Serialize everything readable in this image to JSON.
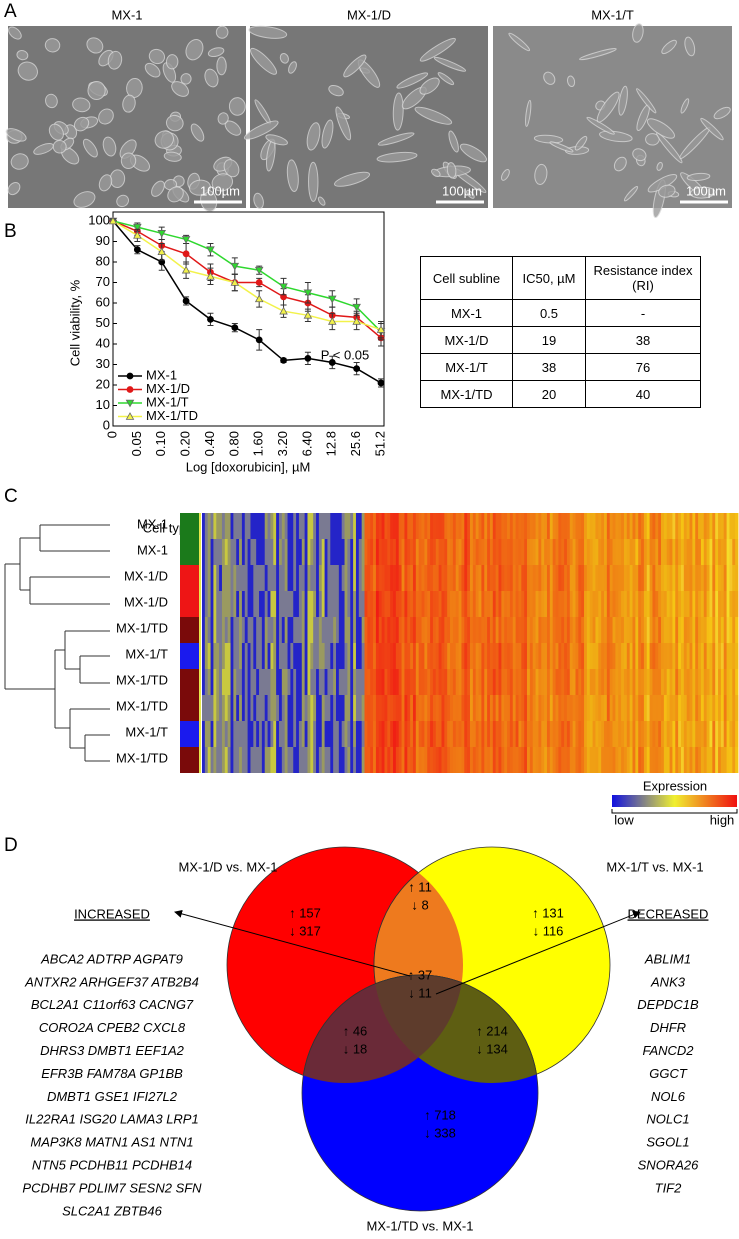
{
  "panels": {
    "a": "A",
    "b": "B",
    "c": "C",
    "d": "D"
  },
  "micrographs": [
    {
      "title": "MX-1",
      "scale_bar": "100µm"
    },
    {
      "title": "MX-1/D",
      "scale_bar": "100µm"
    },
    {
      "title": "MX-1/T",
      "scale_bar": "100µm"
    }
  ],
  "chart_data": {
    "type": "line",
    "y_label": "Cell viability, %",
    "x_label": "Log [doxorubicin], µM",
    "annotation": "P < 0.05",
    "categories": [
      "0",
      "0.05",
      "0.10",
      "0.20",
      "0.40",
      "0.80",
      "1.60",
      "3.20",
      "6.40",
      "12.8",
      "25.6",
      "51.2"
    ],
    "ylim": [
      0,
      100
    ],
    "yticks": [
      0,
      10,
      20,
      30,
      40,
      50,
      60,
      70,
      80,
      90,
      100
    ],
    "grid": false,
    "legend": "lower-left",
    "series": [
      {
        "name": "MX-1",
        "color": "#000000",
        "marker": "circle",
        "values": [
          100,
          86,
          80,
          61,
          52,
          48,
          42,
          32,
          33,
          31,
          28,
          21
        ],
        "errors": [
          1,
          2,
          4,
          2,
          3,
          2,
          5,
          1,
          3,
          3,
          3,
          2
        ]
      },
      {
        "name": "MX-1/D",
        "color": "#e01818",
        "marker": "circle",
        "values": [
          100,
          95,
          88,
          84,
          75,
          70,
          70,
          63,
          60,
          54,
          53,
          43
        ],
        "errors": [
          1,
          2,
          3,
          5,
          4,
          4,
          2,
          4,
          4,
          4,
          3,
          4
        ]
      },
      {
        "name": "MX-1/T",
        "color": "#2ed82e",
        "marker": "triangle-down",
        "values": [
          100,
          97,
          94,
          91,
          86,
          78,
          76,
          68,
          65,
          62,
          58,
          46
        ],
        "errors": [
          1,
          2,
          3,
          2,
          3,
          4,
          2,
          4,
          5,
          4,
          4,
          4
        ]
      },
      {
        "name": "MX-1/TD",
        "color": "#f2f24a",
        "marker": "triangle-up",
        "values": [
          100,
          93,
          85,
          76,
          73,
          70,
          62,
          56,
          54,
          51,
          51,
          47
        ],
        "errors": [
          1,
          3,
          4,
          4,
          4,
          4,
          4,
          3,
          3,
          4,
          4,
          4
        ]
      }
    ]
  },
  "table": {
    "header": [
      "Cell subline",
      "IC50, µM",
      "Resistance index (RI)"
    ],
    "rows": [
      [
        "MX-1",
        "0.5",
        "-"
      ],
      [
        "MX-1/D",
        "19",
        "38"
      ],
      [
        "MX-1/T",
        "38",
        "76"
      ],
      [
        "MX-1/TD",
        "20",
        "40"
      ]
    ]
  },
  "heatmap": {
    "cell_type_label": "Cell type",
    "rows": [
      {
        "label": "MX-1",
        "color": "#1b7a1b"
      },
      {
        "label": "MX-1",
        "color": "#1b7a1b"
      },
      {
        "label": "MX-1/D",
        "color": "#ee1515"
      },
      {
        "label": "MX-1/D",
        "color": "#ee1515"
      },
      {
        "label": "MX-1/TD",
        "color": "#7a0a0a"
      },
      {
        "label": "MX-1/T",
        "color": "#1a1aee"
      },
      {
        "label": "MX-1/TD",
        "color": "#7a0a0a"
      },
      {
        "label": "MX-1/TD",
        "color": "#7a0a0a"
      },
      {
        "label": "MX-1/T",
        "color": "#1a1aee"
      },
      {
        "label": "MX-1/TD",
        "color": "#7a0a0a"
      }
    ],
    "legend": {
      "title": "Expression",
      "low": "low",
      "high": "high"
    }
  },
  "venn": {
    "sets": [
      "MX-1/D vs. MX-1",
      "MX-1/T vs. MX-1",
      "MX-1/TD vs. MX-1"
    ],
    "regions": [
      {
        "up": "↑ 157",
        "down": "↓ 317"
      },
      {
        "up": "↑ 11",
        "down": "↓ 8"
      },
      {
        "up": "↑ 131",
        "down": "↓ 116"
      },
      {
        "up": "↑ 37",
        "down": "↓ 11"
      },
      {
        "up": "↑ 46",
        "down": "↓ 18"
      },
      {
        "up": "↑ 214",
        "down": "↓ 134"
      },
      {
        "up": "↑ 718",
        "down": "↓ 338"
      }
    ],
    "increased": {
      "title": "INCREASED",
      "genes": [
        "ABCA2 ADTRP AGPAT9",
        "ANTXR2 ARHGEF37 ATB2B4",
        "BCL2A1 C11orf63 CACNG7",
        "CORO2A CPEB2 CXCL8",
        "DHRS3 DMBT1 EEF1A2",
        "EFR3B FAM78A GP1BB",
        "DMBT1 GSE1 IFI27L2",
        "IL22RA1 ISG20 LAMA3 LRP1",
        "MAP3K8 MATN1 AS1 NTN1",
        "NTN5 PCDHB11 PCDHB14",
        "PCDHB7 PDLIM7 SESN2 SFN",
        "SLC2A1 ZBTB46"
      ]
    },
    "decreased": {
      "title": "DECREASED",
      "genes": [
        "ABLIM1",
        "ANK3",
        "DEPDC1B",
        "DHFR",
        "FANCD2",
        "GGCT",
        "NOL6",
        "NOLC1",
        "SGOL1",
        "SNORA26",
        "TIF2"
      ]
    }
  }
}
